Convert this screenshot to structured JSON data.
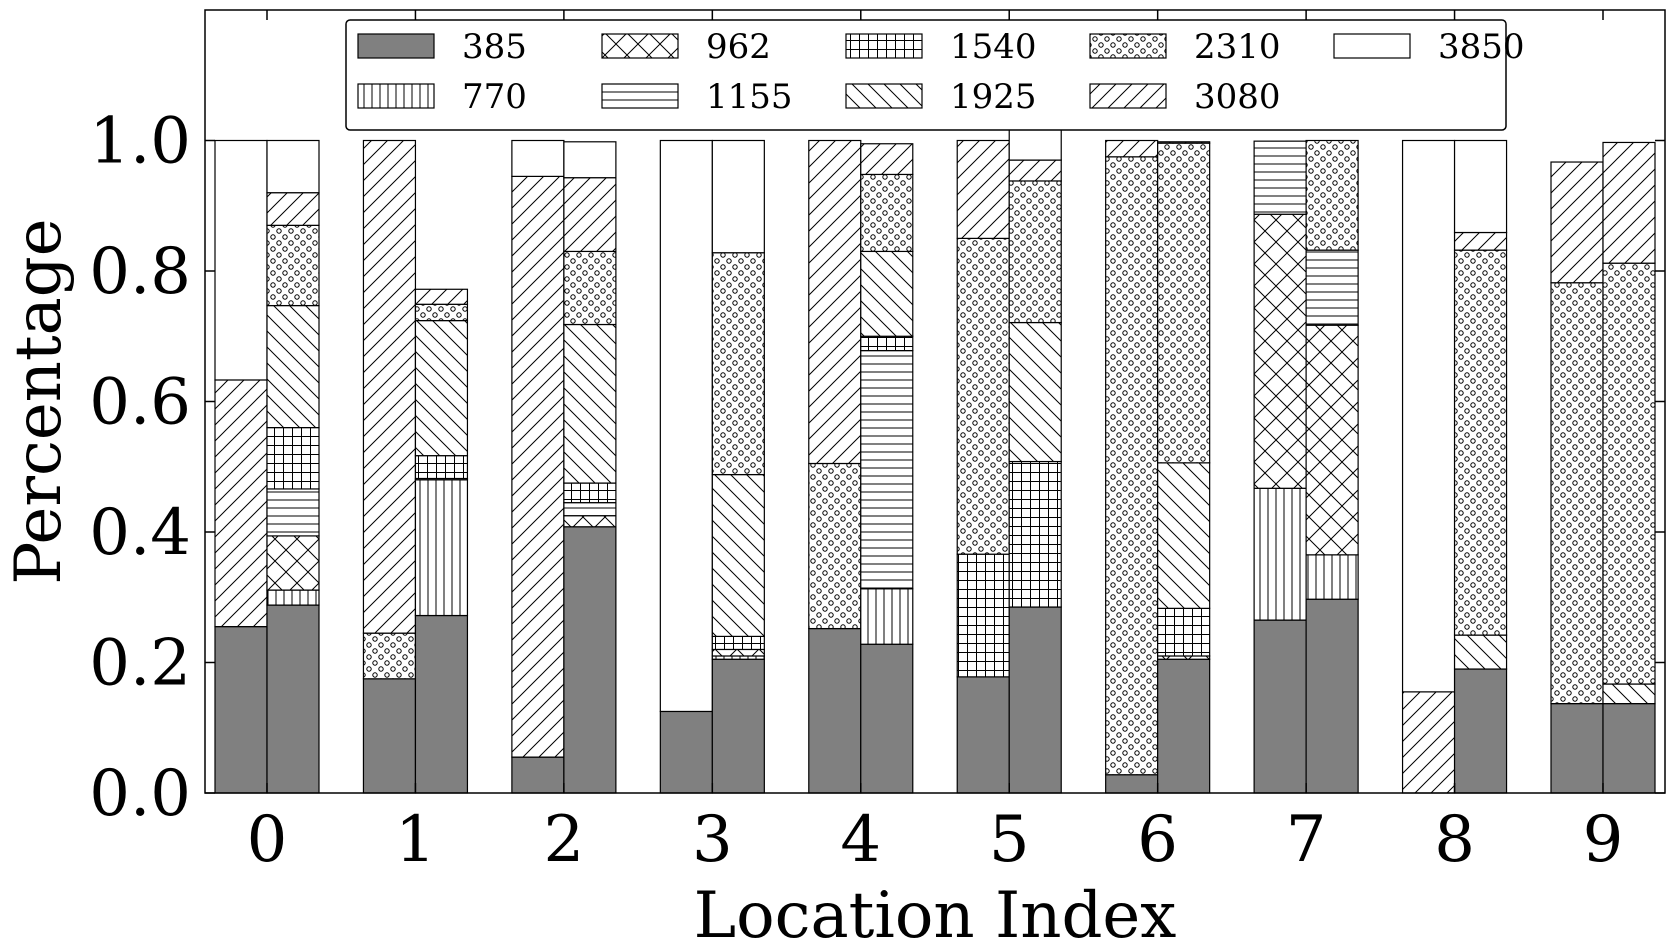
{
  "chart_data": {
    "type": "bar",
    "stacked": true,
    "bars_per_category": 2,
    "xlabel": "Location Index",
    "ylabel": "Percentage",
    "ylim": [
      0,
      1.2
    ],
    "yticks": [
      "0.0",
      "0.2",
      "0.4",
      "0.6",
      "0.8",
      "1.0"
    ],
    "categories": [
      "0",
      "1",
      "2",
      "3",
      "4",
      "5",
      "6",
      "7",
      "8",
      "9"
    ],
    "grid": false,
    "legend_position": "top",
    "legend_columns": 5,
    "series": [
      {
        "name": "385",
        "color": "#808080",
        "pattern": "solid",
        "left": [
          0.255,
          0.175,
          0.055,
          0.125,
          0.252,
          0.178,
          0.028,
          0.265,
          0,
          0.137
        ],
        "right": [
          0.288,
          0.272,
          0.408,
          0.205,
          0.228,
          0.285,
          0.205,
          0.297,
          0.19,
          0.137
        ]
      },
      {
        "name": "770",
        "color": "#ffffff",
        "pattern": "vertical",
        "left": [
          0,
          0,
          0,
          0,
          0,
          0,
          0,
          0.202,
          0,
          0
        ],
        "right": [
          0.023,
          0.208,
          0,
          0.005,
          0.085,
          0,
          0,
          0.068,
          0,
          0
        ]
      },
      {
        "name": "962",
        "color": "#ffffff",
        "pattern": "cross",
        "left": [
          0,
          0,
          0,
          0,
          0,
          0,
          0,
          0.42,
          0,
          0
        ],
        "right": [
          0.083,
          0,
          0.017,
          0.01,
          0,
          0,
          0.005,
          0.352,
          0,
          0
        ]
      },
      {
        "name": "1155",
        "color": "#ffffff",
        "pattern": "horizontal",
        "left": [
          0,
          0,
          0,
          0,
          0,
          0,
          0,
          0.112,
          0,
          0
        ],
        "right": [
          0.072,
          0.002,
          0.02,
          0,
          0.365,
          0,
          0,
          0.115,
          0,
          0
        ]
      },
      {
        "name": "1540",
        "color": "#ffffff",
        "pattern": "grid",
        "left": [
          0,
          0,
          0,
          0,
          0,
          0.188,
          0,
          0,
          0,
          0
        ],
        "right": [
          0.094,
          0.035,
          0.03,
          0.02,
          0.022,
          0.223,
          0.073,
          0,
          0,
          0
        ]
      },
      {
        "name": "1925",
        "color": "#ffffff",
        "pattern": "backslash",
        "left": [
          0,
          0,
          0,
          0,
          0,
          0,
          0,
          0,
          0,
          0
        ],
        "right": [
          0.187,
          0.207,
          0.243,
          0.248,
          0.13,
          0.213,
          0.223,
          0,
          0.052,
          0.03
        ]
      },
      {
        "name": "2310",
        "color": "#ffffff",
        "pattern": "circles",
        "left": [
          0,
          0.07,
          0,
          0,
          0.253,
          0.484,
          0.947,
          0,
          0,
          0.645
        ],
        "right": [
          0.123,
          0.025,
          0.112,
          0.34,
          0.118,
          0.217,
          0.49,
          0.168,
          0.59,
          0.645
        ]
      },
      {
        "name": "3080",
        "color": "#ffffff",
        "pattern": "slash",
        "left": [
          0.378,
          0.755,
          0.89,
          0,
          0.495,
          0.15,
          0.025,
          0,
          0.155,
          0.185
        ],
        "right": [
          0.05,
          0.023,
          0.113,
          0,
          0.047,
          0.032,
          0.002,
          0,
          0.027,
          0.185
        ]
      },
      {
        "name": "3850",
        "color": "#ffffff",
        "pattern": "solid-white",
        "left": [
          0.367,
          0,
          0.055,
          0.875,
          0,
          0,
          0,
          0,
          0.845,
          0
        ],
        "right": [
          0.08,
          0,
          0.055,
          0.172,
          0,
          0.062,
          0,
          0,
          0.141,
          0
        ]
      }
    ]
  }
}
